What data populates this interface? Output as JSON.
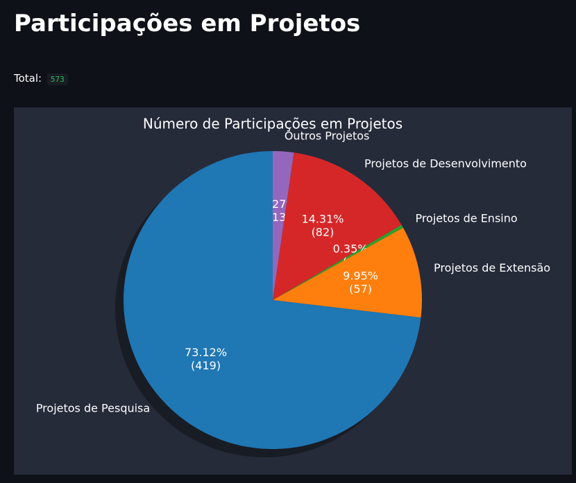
{
  "header": {
    "title": "Participações em Projetos",
    "total_label": "Total:",
    "total_value": 573
  },
  "chart_data": {
    "type": "pie",
    "title": "Número de Participações em Projetos",
    "categories": [
      "Outros Projetos",
      "Projetos de Desenvolvimento",
      "Projetos de Ensino",
      "Projetos de Extensão",
      "Projetos de Pesquisa"
    ],
    "values": [
      13,
      82,
      2,
      57,
      419
    ],
    "value_labels": [
      "2.27%\n(13)",
      "14.31%\n(82)",
      "0.35%\n(2)",
      "9.95%\n(57)",
      "73.12%\n(419)"
    ],
    "colors": [
      "#9467bd",
      "#d62728",
      "#2ca02c",
      "#ff7f0e",
      "#1f77b4"
    ],
    "start_angle": 90,
    "counterclockwise": false,
    "shadow": true
  }
}
